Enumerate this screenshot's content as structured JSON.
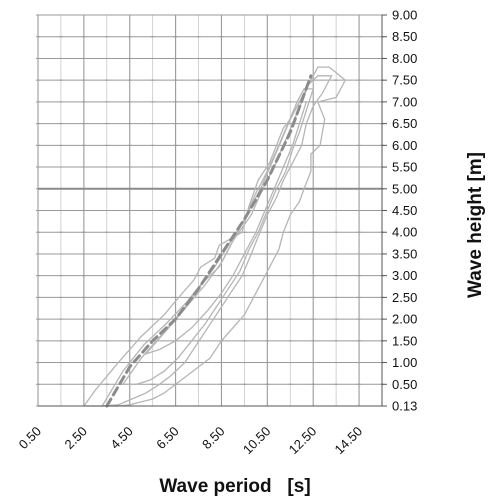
{
  "chart_data": {
    "type": "line",
    "title": "",
    "xlabel": "Wave period   [s]",
    "ylabel": "Wave height [m]",
    "xticks": [
      "0.50",
      "2.50",
      "4.50",
      "6.50",
      "8.50",
      "10.50",
      "12.50",
      "14.50"
    ],
    "yticks": [
      "9.00",
      "8.50",
      "8.00",
      "7.50",
      "7.00",
      "6.50",
      "6.00",
      "5.50",
      "5.00",
      "4.50",
      "4.00",
      "3.50",
      "3.00",
      "2.50",
      "2.00",
      "1.50",
      "1.00",
      "0.50",
      "0.13"
    ],
    "xlim": [
      0.5,
      15.5
    ],
    "ylim": [
      0.13,
      9.0
    ],
    "grid": true,
    "y_axis_side": "right",
    "colors": {
      "grid": "#c8c8c8",
      "grid_major": "#9a9a9a",
      "contour": "#b5b5b5",
      "mean_line": "#8c8c8c"
    },
    "series": [
      {
        "style": "dashed",
        "x": [
          3.5,
          4.5,
          5.5,
          6.5,
          7.5,
          8.5,
          9.5,
          10.5,
          11.5,
          12.4
        ],
        "y": [
          0.13,
          0.9,
          1.5,
          2.0,
          2.7,
          3.5,
          4.3,
          5.2,
          6.3,
          7.6
        ]
      }
    ],
    "contours": [
      {
        "x": [
          2.5,
          3.0,
          4.0,
          5.0,
          6.0,
          6.8,
          7.3,
          7.6,
          8.2,
          8.4,
          9.4,
          9.7,
          10.1,
          10.6,
          10.9,
          11.2,
          11.5,
          11.8,
          12.1,
          12.4,
          12.7,
          13.2,
          13.9,
          13.5,
          12.7,
          13.0,
          12.8,
          12.4,
          12.4,
          12.1,
          11.9,
          11.5,
          11.2,
          11.0,
          10.6,
          10.2,
          9.8,
          9.5,
          9.0,
          8.5,
          8.0,
          7.5,
          7.0,
          6.5,
          6.0,
          5.5,
          5.0,
          4.5,
          4.0,
          3.5,
          3.0,
          2.5
        ],
        "y": [
          0.13,
          0.4,
          1.0,
          1.6,
          2.1,
          2.6,
          2.9,
          3.2,
          3.4,
          3.7,
          4.0,
          4.6,
          5.2,
          5.6,
          6.0,
          6.4,
          6.6,
          6.9,
          7.2,
          7.5,
          7.8,
          7.8,
          7.5,
          7.1,
          7.0,
          6.6,
          6.0,
          5.8,
          5.4,
          5.0,
          4.7,
          4.4,
          4.0,
          3.6,
          3.2,
          2.8,
          2.4,
          2.1,
          1.8,
          1.5,
          1.1,
          0.9,
          0.7,
          0.5,
          0.35,
          0.25,
          0.2,
          0.15,
          0.13,
          0.13,
          0.13,
          0.13
        ]
      },
      {
        "x": [
          3.3,
          4.2,
          5.1,
          6.1,
          7.0,
          7.6,
          8.4,
          9.0,
          9.8,
          10.3,
          10.8,
          11.2,
          11.6,
          12.0,
          12.3,
          12.7,
          13.3,
          12.9,
          12.5,
          12.2,
          12.0,
          11.6,
          11.2,
          10.9,
          10.5,
          10.1,
          9.8,
          9.4,
          8.9,
          8.4,
          7.9,
          7.4,
          6.9,
          6.3,
          5.8,
          5.2,
          4.6,
          4.0,
          3.3
        ],
        "y": [
          0.13,
          0.8,
          1.4,
          1.9,
          2.4,
          2.8,
          3.2,
          3.8,
          4.4,
          5.0,
          5.5,
          6.0,
          6.5,
          7.0,
          7.4,
          7.6,
          7.6,
          7.2,
          6.9,
          6.5,
          6.0,
          5.6,
          5.2,
          4.8,
          4.4,
          3.9,
          3.5,
          3.0,
          2.6,
          2.2,
          1.8,
          1.4,
          1.0,
          0.7,
          0.5,
          0.35,
          0.25,
          0.15,
          0.13
        ]
      },
      {
        "x": [
          4.2,
          5.0,
          6.0,
          6.8,
          7.5,
          8.2,
          8.8,
          9.5,
          10.0,
          10.5,
          11.0,
          11.4,
          11.8,
          12.1,
          12.5,
          12.2,
          11.9,
          11.6,
          11.3,
          10.9,
          10.5,
          10.1,
          9.7,
          9.3,
          8.8,
          8.3,
          7.8,
          7.2,
          6.6,
          6.0,
          5.4,
          4.8,
          4.2
        ],
        "y": [
          0.5,
          1.1,
          1.7,
          2.2,
          2.7,
          3.2,
          3.7,
          4.3,
          4.9,
          5.4,
          6.0,
          6.5,
          7.0,
          7.3,
          7.3,
          6.8,
          6.3,
          5.9,
          5.4,
          5.0,
          4.5,
          4.0,
          3.6,
          3.1,
          2.7,
          2.3,
          1.9,
          1.5,
          1.1,
          0.8,
          0.6,
          0.5,
          0.5
        ]
      },
      {
        "x": [
          5.2,
          6.2,
          7.0,
          7.8,
          8.5,
          9.1,
          9.7,
          10.2,
          10.7,
          11.1,
          11.5,
          11.9,
          12.2,
          11.9,
          11.6,
          11.2,
          10.8,
          10.4,
          10.0,
          9.5,
          9.0,
          8.5,
          7.9,
          7.2,
          6.5,
          5.8,
          5.2
        ],
        "y": [
          1.2,
          1.8,
          2.3,
          2.8,
          3.3,
          3.9,
          4.5,
          5.0,
          5.6,
          6.1,
          6.6,
          7.0,
          7.0,
          6.5,
          6.0,
          5.5,
          5.0,
          4.5,
          4.0,
          3.5,
          3.0,
          2.6,
          2.2,
          1.8,
          1.5,
          1.3,
          1.2
        ]
      }
    ]
  }
}
